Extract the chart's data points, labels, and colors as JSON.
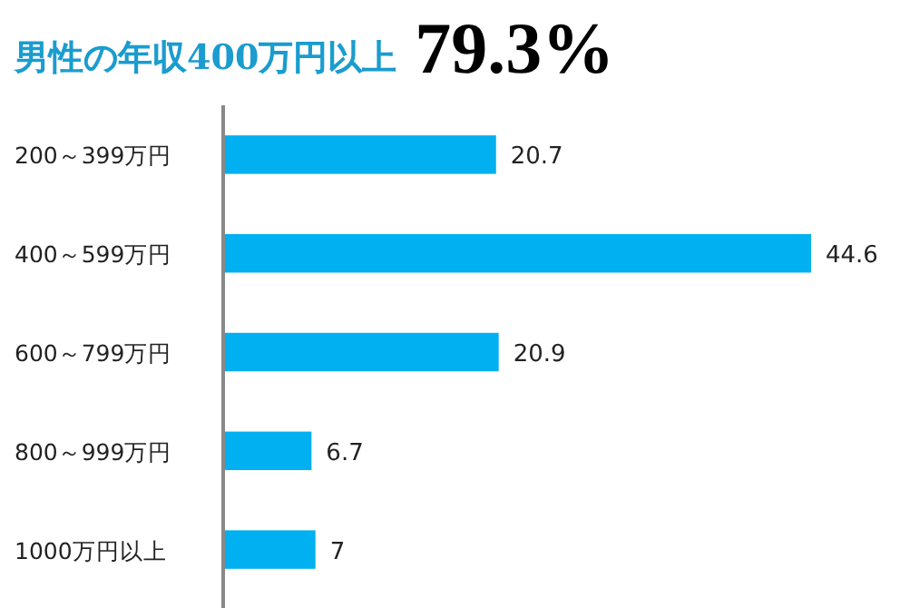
{
  "chart_data": {
    "type": "bar",
    "title": "男性の年収400万円以上",
    "subtitle": "79.3%",
    "categories": [
      "200～399万円",
      "400～599万円",
      "600～799万円",
      "800～999万円",
      "1000万円以上"
    ],
    "values": [
      20.7,
      44.6,
      20.9,
      6.7,
      7
    ],
    "color": "#00b0f0",
    "orientation": "horizontal",
    "data_labels": true
  }
}
